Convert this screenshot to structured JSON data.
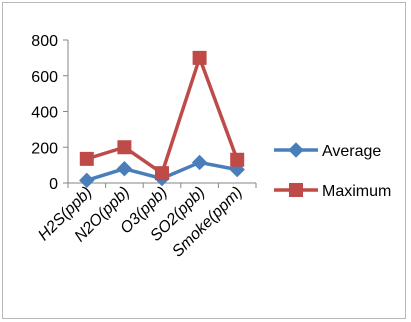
{
  "chart_data": {
    "type": "line",
    "categories": [
      "H2S(ppb)",
      "N2O(ppb)",
      "O3(ppb)",
      "SO2(ppb)",
      "Smoke(ppm)"
    ],
    "series": [
      {
        "name": "Average",
        "values": [
          15,
          80,
          25,
          115,
          75
        ],
        "color": "#4a7ebb",
        "marker": "diamond"
      },
      {
        "name": "Maximum",
        "values": [
          135,
          200,
          55,
          700,
          130
        ],
        "color": "#be4b48",
        "marker": "square"
      }
    ],
    "ylim": [
      0,
      800
    ],
    "yticks": [
      0,
      200,
      400,
      600,
      800
    ],
    "grid": false,
    "legend": "right"
  }
}
